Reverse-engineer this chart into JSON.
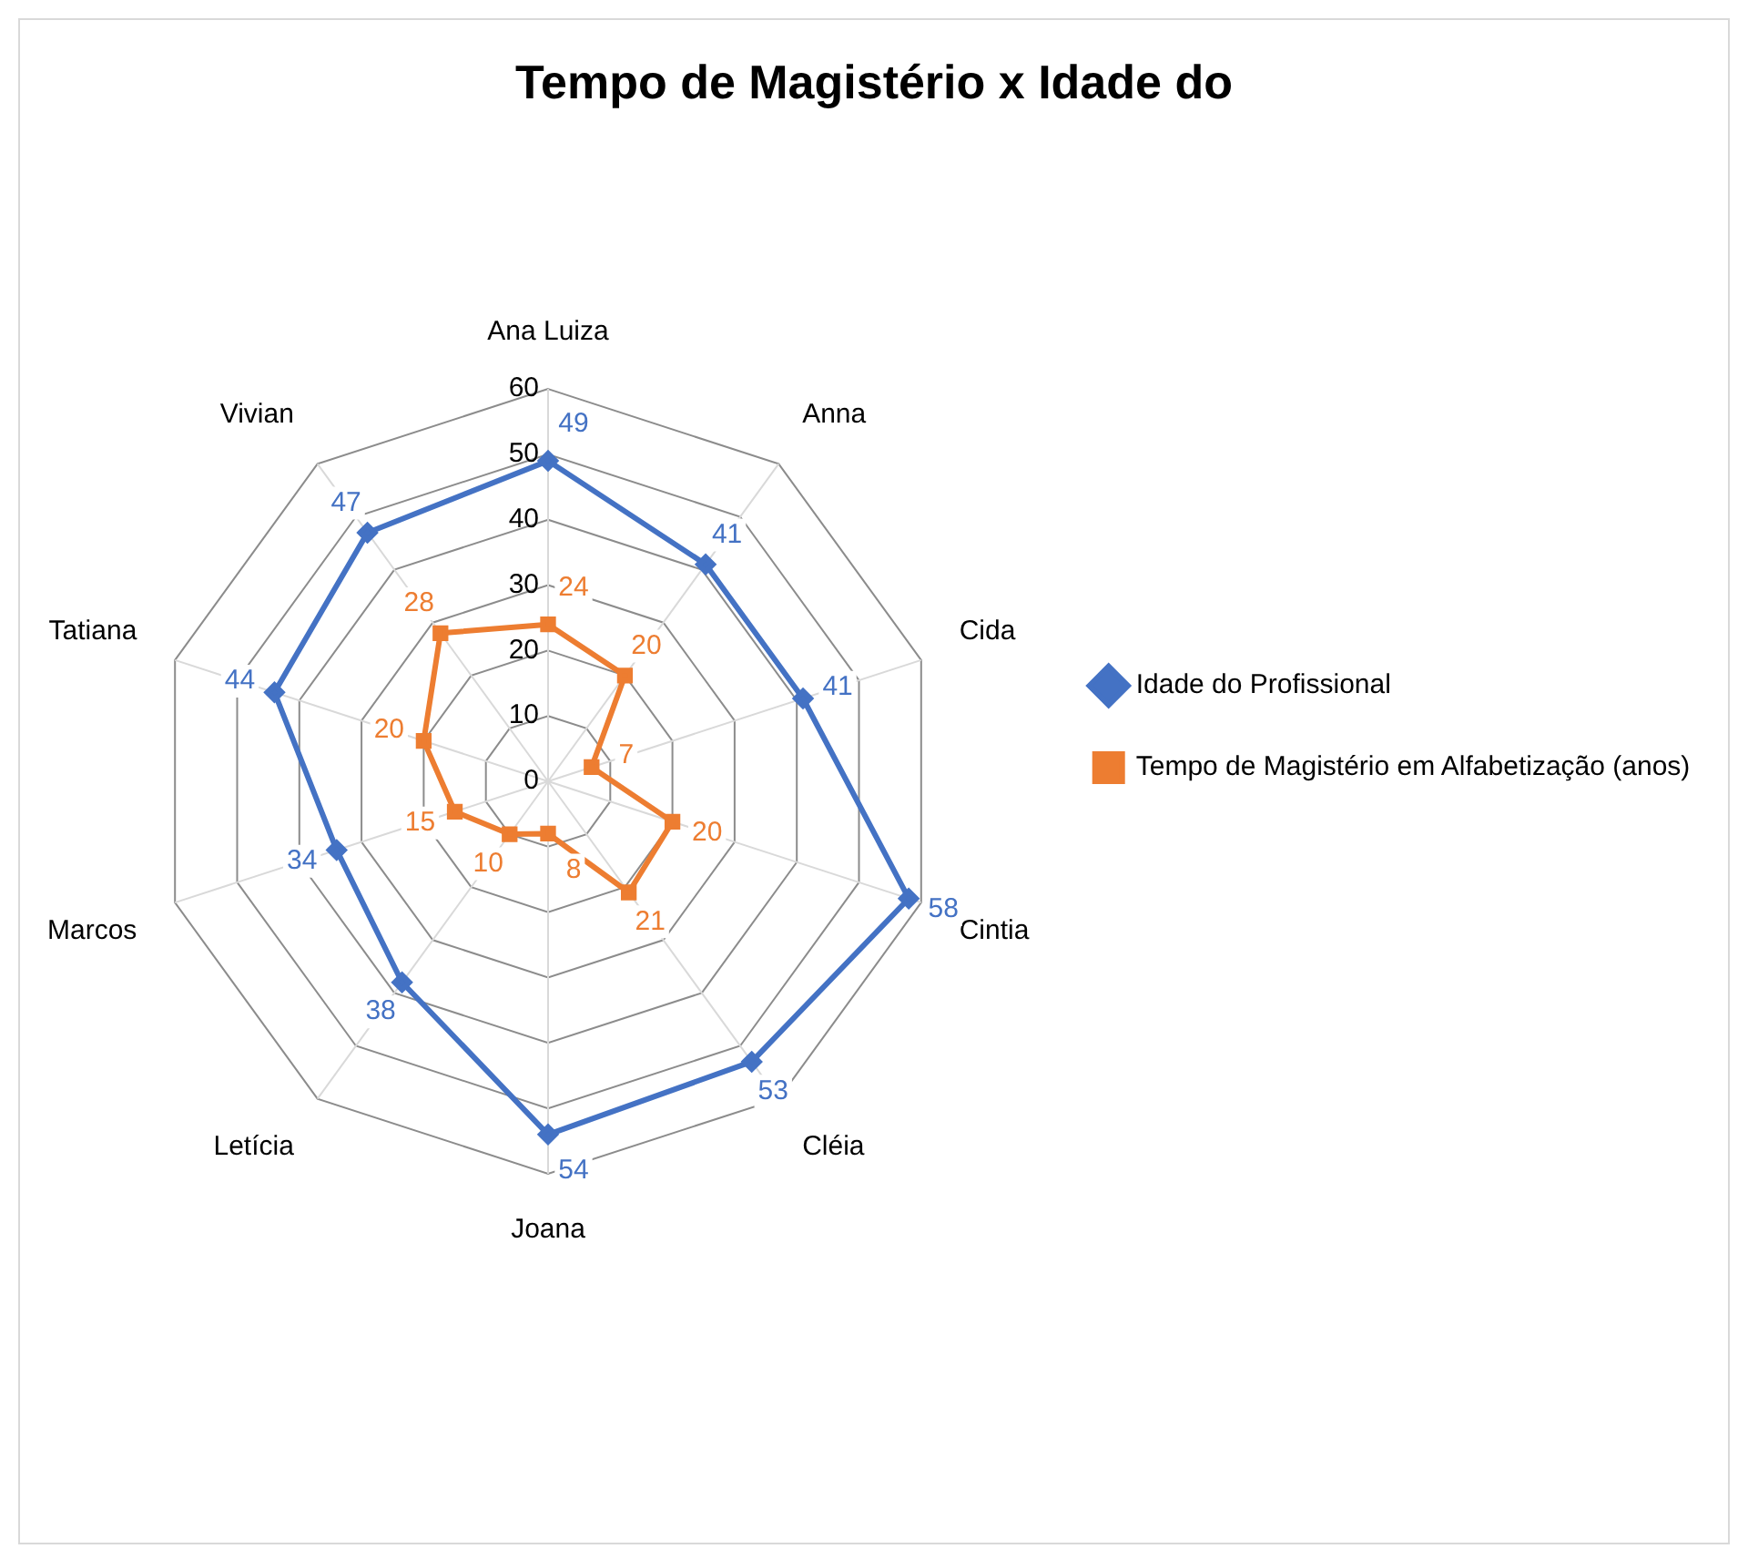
{
  "chart_data": {
    "type": "radar",
    "title": "Tempo de Magistério x Idade do",
    "categories": [
      "Ana Luiza",
      "Anna",
      "Cida",
      "Cintia",
      "Cléia",
      "Joana",
      "Letícia",
      "Marcos",
      "Tatiana",
      "Vivian"
    ],
    "series": [
      {
        "name": "Idade do Profissional",
        "color": "#4472c4",
        "marker": "diamond",
        "values": [
          49,
          41,
          41,
          58,
          53,
          54,
          38,
          34,
          44,
          47
        ]
      },
      {
        "name": "Tempo de Magistério em Alfabetização (anos)",
        "color": "#ed7d31",
        "marker": "square",
        "values": [
          24,
          20,
          7,
          20,
          21,
          8,
          10,
          15,
          20,
          28
        ]
      }
    ],
    "ylim": [
      0,
      60
    ],
    "yticks": [
      0,
      10,
      20,
      30,
      40,
      50,
      60
    ],
    "grid": true,
    "legend": "right",
    "data_labels": true,
    "line_style": "solid"
  }
}
